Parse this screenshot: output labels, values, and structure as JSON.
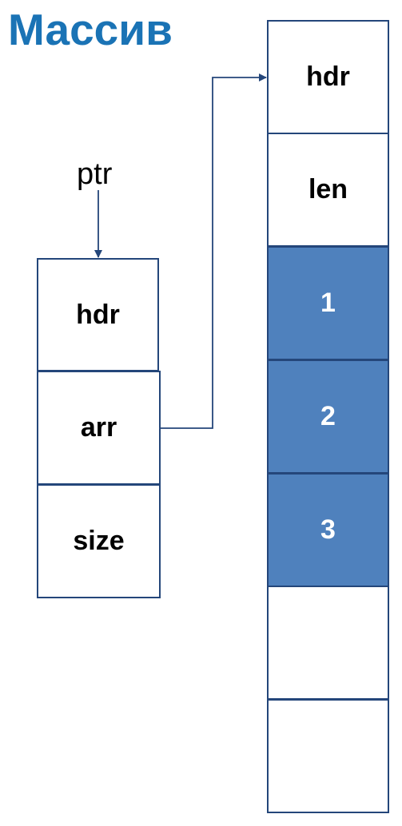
{
  "title": "Массив",
  "pointer_label": "ptr",
  "object_fields": [
    "hdr",
    "arr",
    "size"
  ],
  "array_cells": [
    {
      "label": "hdr",
      "filled": false
    },
    {
      "label": "len",
      "filled": false
    },
    {
      "label": "1",
      "filled": true
    },
    {
      "label": "2",
      "filled": true
    },
    {
      "label": "3",
      "filled": true
    },
    {
      "label": "",
      "filled": false
    },
    {
      "label": "",
      "filled": false
    }
  ],
  "colors": {
    "title": "#1a73b5",
    "filled_cell": "#4f81bd",
    "border": "#24467a",
    "arrow": "#24467a"
  }
}
